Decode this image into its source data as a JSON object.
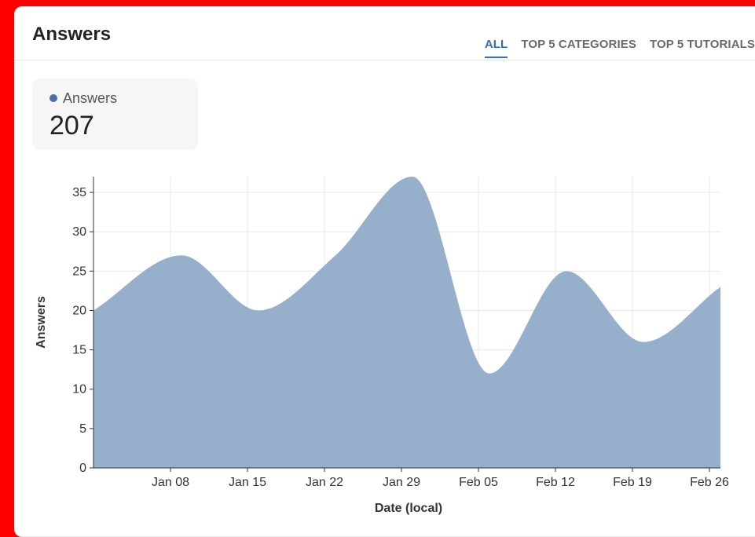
{
  "card": {
    "title": "Answers",
    "tabs": [
      {
        "label": "ALL",
        "active": true
      },
      {
        "label": "TOP 5 CATEGORIES",
        "active": false
      },
      {
        "label": "TOP 5 TUTORIALS",
        "active": false
      }
    ],
    "stat": {
      "label": "Answers",
      "value": "207"
    }
  },
  "colors": {
    "accent": "#2f6ebd",
    "series_fill": "#94aecb",
    "series_dot": "#4a72a6"
  },
  "chart_data": {
    "type": "area",
    "title": "",
    "xlabel": "Date (local)",
    "ylabel": "Answers",
    "ylim": [
      0,
      37
    ],
    "yticks": [
      0,
      5,
      10,
      15,
      20,
      25,
      30,
      35
    ],
    "xlim": [
      "2024-01-01",
      "2024-02-27"
    ],
    "xtick_labels": [
      "Jan 08",
      "Jan 15",
      "Jan 22",
      "Jan 29",
      "Feb 05",
      "Feb 12",
      "Feb 19",
      "Feb 26"
    ],
    "xtick_dates": [
      "2024-01-08",
      "2024-01-15",
      "2024-01-22",
      "2024-01-29",
      "2024-02-05",
      "2024-02-12",
      "2024-02-19",
      "2024-02-26"
    ],
    "grid": true,
    "series": [
      {
        "x": [
          "2024-01-01",
          "2024-01-09",
          "2024-01-16",
          "2024-01-23",
          "2024-01-30",
          "2024-02-06",
          "2024-02-13",
          "2024-02-20",
          "2024-02-27"
        ],
        "values": [
          20,
          27,
          20,
          27,
          37,
          12,
          25,
          16,
          23
        ]
      }
    ]
  }
}
